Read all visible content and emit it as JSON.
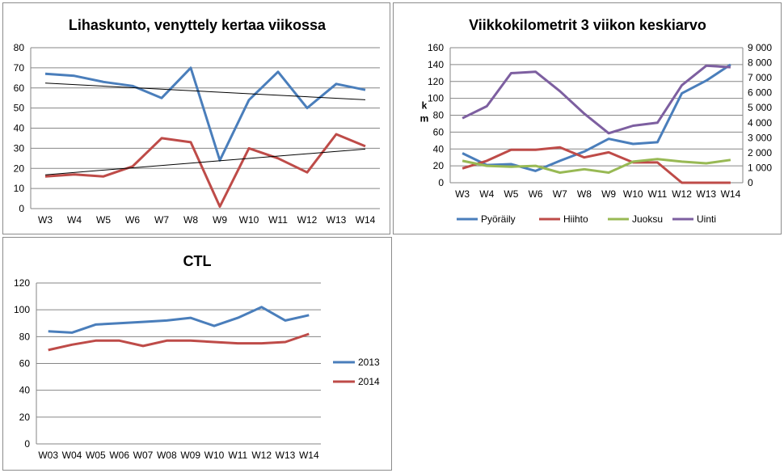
{
  "chart_data": [
    {
      "type": "line",
      "title": "Lihaskunto, venyttely kertaa viikossa",
      "categories": [
        "W3",
        "W4",
        "W5",
        "W6",
        "W7",
        "W8",
        "W9",
        "W10",
        "W11",
        "W12",
        "W13",
        "W14"
      ],
      "ylim": [
        0,
        80
      ],
      "yticks": [
        "0",
        "10",
        "20",
        "30",
        "40",
        "50",
        "60",
        "70",
        "80"
      ],
      "grid": true,
      "series": [
        {
          "color": "#4a7ebb",
          "values": [
            67,
            66,
            63,
            61,
            55,
            70,
            24,
            54,
            68,
            50,
            62,
            59
          ]
        },
        {
          "color": "#be4b48",
          "values": [
            16,
            17,
            16,
            21,
            35,
            33,
            1,
            30,
            25,
            18,
            37,
            31
          ]
        }
      ],
      "trendlines": [
        {
          "color": "#000000",
          "start": 62.4,
          "end": 54.1
        },
        {
          "color": "#000000",
          "start": 16.8,
          "end": 29.6
        }
      ]
    },
    {
      "type": "line",
      "title": "Viikkokilometrit 3 viikon keskiarvo",
      "categories": [
        "W3",
        "W4",
        "W5",
        "W6",
        "W7",
        "W8",
        "W9",
        "W10",
        "W11",
        "W12",
        "W13",
        "W14"
      ],
      "ylabel": "km",
      "ylim": [
        0,
        160
      ],
      "yticks": [
        "0",
        "20",
        "40",
        "60",
        "80",
        "100",
        "120",
        "140",
        "160"
      ],
      "y2lim": [
        0,
        9000
      ],
      "y2ticks": [
        "0",
        "1 000",
        "2 000",
        "3 000",
        "4 000",
        "5 000",
        "6 000",
        "7 000",
        "8 000",
        "9 000"
      ],
      "grid": true,
      "legend_position": "bottom",
      "series": [
        {
          "name": "Pyöräily",
          "color": "#4a7ebb",
          "axis": "left",
          "values": [
            35,
            21,
            22,
            14,
            26,
            37,
            52,
            46,
            48,
            106,
            121,
            140
          ]
        },
        {
          "name": "Hiihto",
          "color": "#be4b48",
          "axis": "left",
          "values": [
            17,
            26,
            39,
            39,
            42,
            30,
            36,
            24,
            24,
            0,
            0,
            0
          ]
        },
        {
          "name": "Juoksu",
          "color": "#98b954",
          "axis": "left",
          "values": [
            26,
            20,
            19,
            20,
            12,
            16,
            12,
            25,
            28,
            25,
            23,
            27
          ]
        },
        {
          "name": "Uinti",
          "color": "#7d5fa0",
          "axis": "right",
          "values": [
            4300,
            5100,
            7300,
            7400,
            6100,
            4600,
            3300,
            3800,
            4000,
            6500,
            7800,
            7700
          ]
        }
      ]
    },
    {
      "type": "line",
      "title": "CTL",
      "categories": [
        "W03",
        "W04",
        "W05",
        "W06",
        "W07",
        "W08",
        "W09",
        "W10",
        "W11",
        "W12",
        "W13",
        "W14"
      ],
      "ylim": [
        0,
        120
      ],
      "yticks": [
        "0",
        "20",
        "40",
        "60",
        "80",
        "100",
        "120"
      ],
      "grid": true,
      "legend_position": "right",
      "series": [
        {
          "name": "2013",
          "color": "#4a7ebb",
          "values": [
            84,
            83,
            89,
            90,
            91,
            92,
            94,
            88,
            94,
            102,
            92,
            96
          ]
        },
        {
          "name": "2014",
          "color": "#be4b48",
          "values": [
            70,
            74,
            77,
            77,
            73,
            77,
            77,
            76,
            75,
            75,
            76,
            82
          ]
        }
      ]
    }
  ]
}
